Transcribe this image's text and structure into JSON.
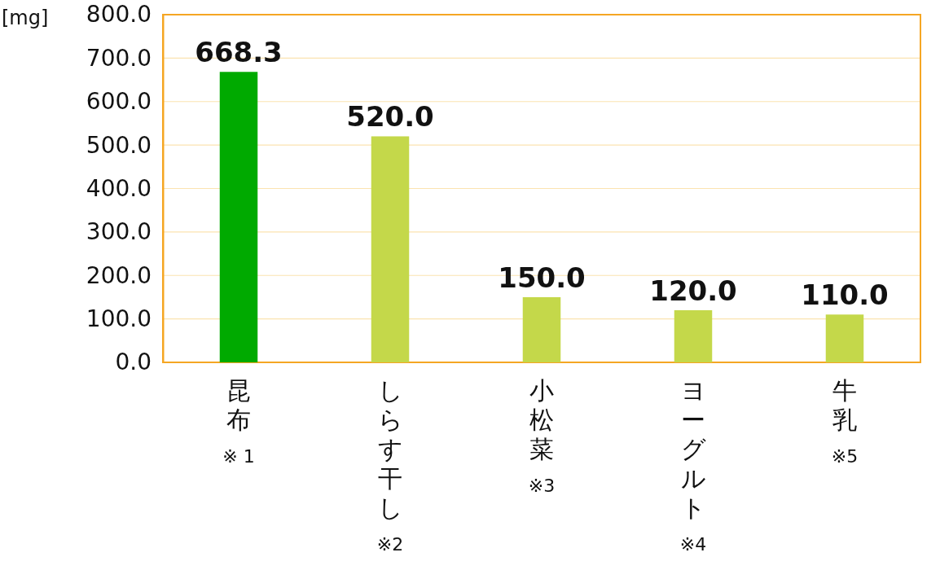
{
  "chart_data": {
    "type": "bar",
    "ylabel": "[mg]",
    "categories": [
      "昆布",
      "しらす干し",
      "小松菜",
      "ヨーグルト",
      "牛乳"
    ],
    "values": [
      668.3,
      520.0,
      150.0,
      120.0,
      110.0
    ],
    "colors": [
      "#00aa00",
      "#c4d84a",
      "#c4d84a",
      "#c4d84a",
      "#c4d84a"
    ],
    "ylim": [
      0,
      800
    ],
    "yticks": [
      {
        "value": 0,
        "label": "0.0"
      },
      {
        "value": 100,
        "label": "100.0"
      },
      {
        "value": 200,
        "label": "200.0"
      },
      {
        "value": 300,
        "label": "300.0"
      },
      {
        "value": 400,
        "label": "400.0"
      },
      {
        "value": 500,
        "label": "500.0"
      },
      {
        "value": 600,
        "label": "600.0"
      },
      {
        "value": 700,
        "label": "700.0"
      },
      {
        "value": 800,
        "label": "800.0"
      }
    ],
    "grid": "y",
    "value_labels": [
      "668.3",
      "520.0",
      "150.0",
      "120.0",
      "110.0"
    ],
    "annotations": [
      "※ 1",
      "※2",
      "※3",
      "※4",
      "※5"
    ]
  }
}
